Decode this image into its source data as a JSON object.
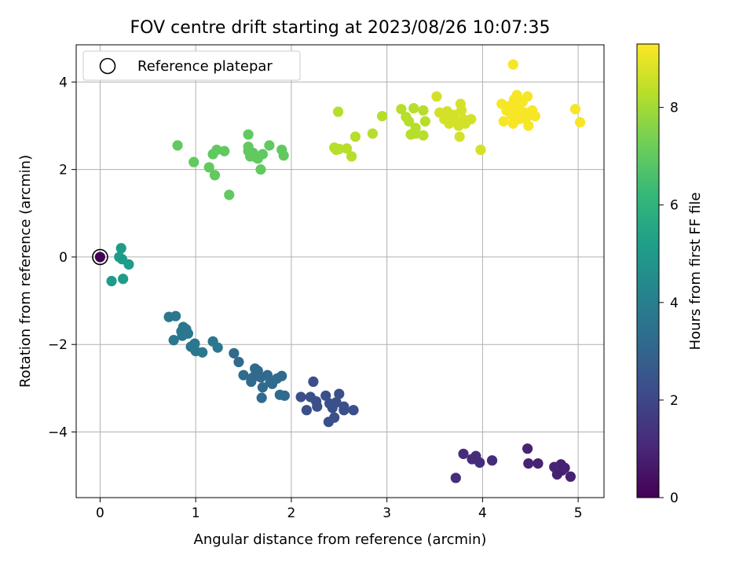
{
  "chart_data": {
    "type": "scatter",
    "title": "FOV centre drift starting at 2023/08/26 10:07:35",
    "xlabel": "Angular distance from reference (arcmin)",
    "ylabel": "Rotation from reference (arcmin)",
    "xlim": [
      -0.25,
      5.27
    ],
    "ylim": [
      -5.5,
      4.85
    ],
    "xticks": [
      0,
      1,
      2,
      3,
      4,
      5
    ],
    "yticks": [
      -4,
      -2,
      0,
      2,
      4
    ],
    "xtick_labels": [
      "0",
      "1",
      "2",
      "3",
      "4",
      "5"
    ],
    "ytick_labels": [
      "−4",
      "−2",
      "0",
      "2",
      "4"
    ],
    "grid": true,
    "legend": {
      "position": "upper-left",
      "entries": [
        "Reference platepar"
      ]
    },
    "reference_marker": {
      "x": 0,
      "y": 0,
      "c": 0
    },
    "colorbar": {
      "label": "Hours from first FF file",
      "min": 0,
      "max": 9.3,
      "ticks": [
        0,
        2,
        4,
        6,
        8
      ],
      "tick_labels": [
        "0",
        "2",
        "4",
        "6",
        "8"
      ],
      "colormap": "viridis",
      "stops": [
        "#440154",
        "#482878",
        "#3e4989",
        "#31688e",
        "#26828e",
        "#1f9e89",
        "#35b779",
        "#6ece58",
        "#b5de2b",
        "#fde725"
      ]
    },
    "points": [
      {
        "x": 0,
        "y": 0,
        "c": 0.05
      },
      {
        "x": 4.47,
        "y": -4.38,
        "c": 0.9
      },
      {
        "x": 4.82,
        "y": -4.74,
        "c": 0.85
      },
      {
        "x": 4.78,
        "y": -4.97,
        "c": 0.85
      },
      {
        "x": 4.83,
        "y": -4.88,
        "c": 0.8
      },
      {
        "x": 4.86,
        "y": -4.82,
        "c": 0.85
      },
      {
        "x": 4.92,
        "y": -5.02,
        "c": 0.85
      },
      {
        "x": 4.75,
        "y": -4.8,
        "c": 0.9
      },
      {
        "x": 4.58,
        "y": -4.72,
        "c": 0.9
      },
      {
        "x": 4.48,
        "y": -4.72,
        "c": 0.9
      },
      {
        "x": 3.8,
        "y": -4.5,
        "c": 1.2
      },
      {
        "x": 3.89,
        "y": -4.62,
        "c": 1.2
      },
      {
        "x": 3.93,
        "y": -4.55,
        "c": 1.2
      },
      {
        "x": 3.97,
        "y": -4.7,
        "c": 1.2
      },
      {
        "x": 4.1,
        "y": -4.65,
        "c": 1.2
      },
      {
        "x": 3.72,
        "y": -5.05,
        "c": 1.2
      },
      {
        "x": 2.23,
        "y": -2.85,
        "c": 2.3
      },
      {
        "x": 2.1,
        "y": -3.2,
        "c": 2.3
      },
      {
        "x": 2.2,
        "y": -3.2,
        "c": 2.3
      },
      {
        "x": 2.26,
        "y": -3.3,
        "c": 2.3
      },
      {
        "x": 2.36,
        "y": -3.17,
        "c": 2.3
      },
      {
        "x": 2.4,
        "y": -3.35,
        "c": 2.3
      },
      {
        "x": 2.43,
        "y": -3.45,
        "c": 2.3
      },
      {
        "x": 2.5,
        "y": -3.13,
        "c": 2.3
      },
      {
        "x": 2.16,
        "y": -3.5,
        "c": 2.3
      },
      {
        "x": 2.27,
        "y": -3.42,
        "c": 2.3
      },
      {
        "x": 2.39,
        "y": -3.77,
        "c": 2.3
      },
      {
        "x": 2.45,
        "y": -3.67,
        "c": 2.3
      },
      {
        "x": 2.55,
        "y": -3.42,
        "c": 2.3
      },
      {
        "x": 2.55,
        "y": -3.5,
        "c": 2.3
      },
      {
        "x": 2.65,
        "y": -3.5,
        "c": 2.3
      },
      {
        "x": 2.47,
        "y": -3.32,
        "c": 2.3
      },
      {
        "x": 1.4,
        "y": -2.2,
        "c": 3.2
      },
      {
        "x": 1.45,
        "y": -2.4,
        "c": 3.2
      },
      {
        "x": 1.5,
        "y": -2.7,
        "c": 3.2
      },
      {
        "x": 1.58,
        "y": -2.85,
        "c": 3.2
      },
      {
        "x": 1.62,
        "y": -2.55,
        "c": 3.2
      },
      {
        "x": 1.65,
        "y": -2.6,
        "c": 3.2
      },
      {
        "x": 1.68,
        "y": -2.75,
        "c": 3.2
      },
      {
        "x": 1.7,
        "y": -2.98,
        "c": 3.2
      },
      {
        "x": 1.75,
        "y": -2.7,
        "c": 3.2
      },
      {
        "x": 1.78,
        "y": -2.85,
        "c": 3.2
      },
      {
        "x": 1.8,
        "y": -2.9,
        "c": 3.2
      },
      {
        "x": 1.85,
        "y": -2.78,
        "c": 3.2
      },
      {
        "x": 1.9,
        "y": -2.72,
        "c": 3.2
      },
      {
        "x": 1.88,
        "y": -3.15,
        "c": 3.2
      },
      {
        "x": 1.93,
        "y": -3.17,
        "c": 3.2
      },
      {
        "x": 1.69,
        "y": -3.22,
        "c": 3.2
      },
      {
        "x": 1.6,
        "y": -2.75,
        "c": 3.2
      },
      {
        "x": 0.72,
        "y": -1.37,
        "c": 3.7
      },
      {
        "x": 0.79,
        "y": -1.35,
        "c": 3.7
      },
      {
        "x": 0.77,
        "y": -1.9,
        "c": 3.7
      },
      {
        "x": 0.85,
        "y": -1.7,
        "c": 3.7
      },
      {
        "x": 0.87,
        "y": -1.6,
        "c": 3.7
      },
      {
        "x": 0.9,
        "y": -1.65,
        "c": 3.7
      },
      {
        "x": 0.92,
        "y": -1.75,
        "c": 3.7
      },
      {
        "x": 0.95,
        "y": -2.05,
        "c": 3.7
      },
      {
        "x": 0.99,
        "y": -1.98,
        "c": 3.7
      },
      {
        "x": 1.0,
        "y": -2.15,
        "c": 3.7
      },
      {
        "x": 1.07,
        "y": -2.18,
        "c": 3.7
      },
      {
        "x": 1.18,
        "y": -1.93,
        "c": 3.7
      },
      {
        "x": 1.23,
        "y": -2.07,
        "c": 3.7
      },
      {
        "x": 0.86,
        "y": -1.8,
        "c": 3.7
      },
      {
        "x": 0.22,
        "y": 0.2,
        "c": 5.1
      },
      {
        "x": 0.2,
        "y": 0.0,
        "c": 5.1
      },
      {
        "x": 0.23,
        "y": -0.05,
        "c": 5.1
      },
      {
        "x": 0.3,
        "y": -0.17,
        "c": 5.1
      },
      {
        "x": 0.12,
        "y": -0.55,
        "c": 5.1
      },
      {
        "x": 0.24,
        "y": -0.5,
        "c": 5.1
      },
      {
        "x": 0.81,
        "y": 2.55,
        "c": 7.0
      },
      {
        "x": 0.98,
        "y": 2.17,
        "c": 7.0
      },
      {
        "x": 1.14,
        "y": 2.05,
        "c": 7.0
      },
      {
        "x": 1.2,
        "y": 1.87,
        "c": 7.0
      },
      {
        "x": 1.18,
        "y": 2.35,
        "c": 7.0
      },
      {
        "x": 1.22,
        "y": 2.45,
        "c": 7.0
      },
      {
        "x": 1.3,
        "y": 2.42,
        "c": 7.0
      },
      {
        "x": 1.35,
        "y": 1.42,
        "c": 7.0
      },
      {
        "x": 1.55,
        "y": 2.8,
        "c": 7.0
      },
      {
        "x": 1.55,
        "y": 2.42,
        "c": 7.0
      },
      {
        "x": 1.57,
        "y": 2.3,
        "c": 7.0
      },
      {
        "x": 1.6,
        "y": 2.38,
        "c": 7.0
      },
      {
        "x": 1.63,
        "y": 2.28,
        "c": 7.0
      },
      {
        "x": 1.65,
        "y": 2.25,
        "c": 7.0
      },
      {
        "x": 1.7,
        "y": 2.35,
        "c": 7.0
      },
      {
        "x": 1.68,
        "y": 2.0,
        "c": 7.0
      },
      {
        "x": 1.77,
        "y": 2.55,
        "c": 7.0
      },
      {
        "x": 1.9,
        "y": 2.45,
        "c": 7.0
      },
      {
        "x": 1.92,
        "y": 2.32,
        "c": 7.0
      },
      {
        "x": 1.55,
        "y": 2.52,
        "c": 7.0
      },
      {
        "x": 2.45,
        "y": 2.5,
        "c": 8.3
      },
      {
        "x": 2.47,
        "y": 2.45,
        "c": 8.3
      },
      {
        "x": 2.5,
        "y": 2.47,
        "c": 8.3
      },
      {
        "x": 2.58,
        "y": 2.48,
        "c": 8.3
      },
      {
        "x": 2.63,
        "y": 2.3,
        "c": 8.3
      },
      {
        "x": 2.67,
        "y": 2.75,
        "c": 8.3
      },
      {
        "x": 2.49,
        "y": 3.32,
        "c": 8.3
      },
      {
        "x": 2.85,
        "y": 2.82,
        "c": 8.3
      },
      {
        "x": 2.95,
        "y": 3.22,
        "c": 8.3
      },
      {
        "x": 3.15,
        "y": 3.38,
        "c": 8.3
      },
      {
        "x": 3.2,
        "y": 3.2,
        "c": 8.3
      },
      {
        "x": 3.23,
        "y": 3.1,
        "c": 8.3
      },
      {
        "x": 3.25,
        "y": 2.8,
        "c": 8.3
      },
      {
        "x": 3.28,
        "y": 3.4,
        "c": 8.3
      },
      {
        "x": 3.3,
        "y": 2.95,
        "c": 8.3
      },
      {
        "x": 3.3,
        "y": 2.82,
        "c": 8.3
      },
      {
        "x": 3.38,
        "y": 3.35,
        "c": 8.3
      },
      {
        "x": 3.4,
        "y": 3.1,
        "c": 8.3
      },
      {
        "x": 3.38,
        "y": 2.78,
        "c": 8.3
      },
      {
        "x": 3.52,
        "y": 3.67,
        "c": 8.7
      },
      {
        "x": 3.55,
        "y": 3.3,
        "c": 8.7
      },
      {
        "x": 3.6,
        "y": 3.15,
        "c": 8.7
      },
      {
        "x": 3.63,
        "y": 3.33,
        "c": 8.7
      },
      {
        "x": 3.65,
        "y": 3.05,
        "c": 8.7
      },
      {
        "x": 3.7,
        "y": 3.2,
        "c": 8.7
      },
      {
        "x": 3.72,
        "y": 3.1,
        "c": 8.7
      },
      {
        "x": 3.75,
        "y": 3.0,
        "c": 8.7
      },
      {
        "x": 3.77,
        "y": 3.5,
        "c": 8.7
      },
      {
        "x": 3.78,
        "y": 3.35,
        "c": 8.7
      },
      {
        "x": 3.8,
        "y": 3.15,
        "c": 8.7
      },
      {
        "x": 3.82,
        "y": 3.05,
        "c": 8.7
      },
      {
        "x": 3.76,
        "y": 2.75,
        "c": 8.7
      },
      {
        "x": 3.88,
        "y": 3.15,
        "c": 8.7
      },
      {
        "x": 3.98,
        "y": 2.45,
        "c": 8.7
      },
      {
        "x": 3.7,
        "y": 3.25,
        "c": 8.7
      },
      {
        "x": 4.2,
        "y": 3.5,
        "c": 9.2
      },
      {
        "x": 4.22,
        "y": 3.1,
        "c": 9.2
      },
      {
        "x": 4.25,
        "y": 3.35,
        "c": 9.2
      },
      {
        "x": 4.28,
        "y": 3.45,
        "c": 9.2
      },
      {
        "x": 4.3,
        "y": 3.25,
        "c": 9.2
      },
      {
        "x": 4.32,
        "y": 3.05,
        "c": 9.2
      },
      {
        "x": 4.33,
        "y": 3.6,
        "c": 9.2
      },
      {
        "x": 4.35,
        "y": 3.3,
        "c": 9.2
      },
      {
        "x": 4.36,
        "y": 3.7,
        "c": 9.2
      },
      {
        "x": 4.38,
        "y": 3.4,
        "c": 9.2
      },
      {
        "x": 4.4,
        "y": 3.2,
        "c": 9.2
      },
      {
        "x": 4.42,
        "y": 3.55,
        "c": 9.2
      },
      {
        "x": 4.44,
        "y": 3.3,
        "c": 9.2
      },
      {
        "x": 4.45,
        "y": 3.15,
        "c": 9.2
      },
      {
        "x": 4.47,
        "y": 3.67,
        "c": 9.2
      },
      {
        "x": 4.48,
        "y": 3.0,
        "c": 9.2
      },
      {
        "x": 4.5,
        "y": 3.25,
        "c": 9.2
      },
      {
        "x": 4.52,
        "y": 3.35,
        "c": 9.2
      },
      {
        "x": 4.55,
        "y": 3.22,
        "c": 9.2
      },
      {
        "x": 4.32,
        "y": 4.4,
        "c": 9.2
      },
      {
        "x": 4.97,
        "y": 3.38,
        "c": 9.2
      },
      {
        "x": 5.02,
        "y": 3.08,
        "c": 9.2
      },
      {
        "x": 4.38,
        "y": 3.15,
        "c": 9.2
      },
      {
        "x": 4.3,
        "y": 3.45,
        "c": 9.2
      }
    ]
  }
}
